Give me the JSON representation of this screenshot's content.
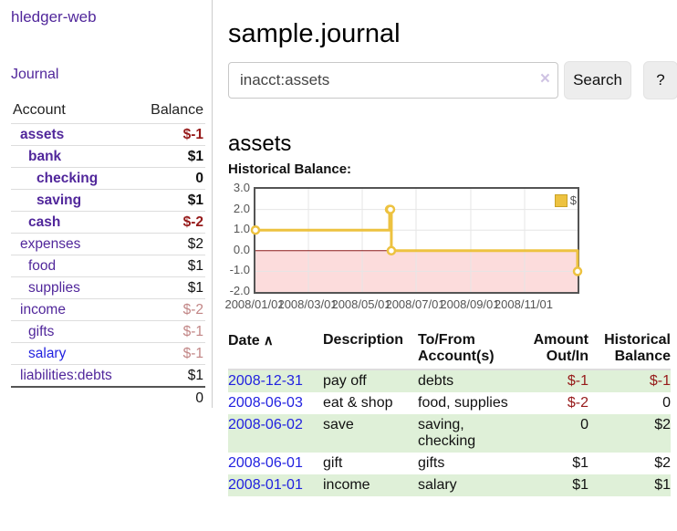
{
  "app": {
    "title": "hledger-web"
  },
  "sidebar": {
    "nav_journal": "Journal",
    "accounts_table": {
      "headers": {
        "account": "Account",
        "balance": "Balance"
      },
      "rows": [
        {
          "name": "assets",
          "balance": "$-1",
          "level": 1,
          "bold": true,
          "balance_class": "neg"
        },
        {
          "name": "bank",
          "balance": "$1",
          "level": 2,
          "bold": true,
          "balance_class": ""
        },
        {
          "name": "checking",
          "balance": "0",
          "level": 3,
          "bold": true,
          "balance_class": ""
        },
        {
          "name": "saving",
          "balance": "$1",
          "level": 3,
          "bold": true,
          "balance_class": ""
        },
        {
          "name": "cash",
          "balance": "$-2",
          "level": 2,
          "bold": true,
          "balance_class": "neg"
        },
        {
          "name": "expenses",
          "balance": "$2",
          "level": 1,
          "bold": false,
          "balance_class": ""
        },
        {
          "name": "food",
          "balance": "$1",
          "level": 2,
          "bold": false,
          "balance_class": ""
        },
        {
          "name": "supplies",
          "balance": "$1",
          "level": 2,
          "bold": false,
          "balance_class": ""
        },
        {
          "name": "income",
          "balance": "$-2",
          "level": 1,
          "bold": false,
          "balance_class": "neg-light"
        },
        {
          "name": "gifts",
          "balance": "$-1",
          "level": 2,
          "bold": false,
          "balance_class": "neg-light"
        },
        {
          "name": "salary",
          "balance": "$-1",
          "level": 2,
          "bold": false,
          "balance_class": "neg-light",
          "link_color": "blue"
        },
        {
          "name": "liabilities:debts",
          "balance": "$1",
          "level": 1,
          "bold": false,
          "balance_class": ""
        }
      ],
      "total": "0"
    }
  },
  "main": {
    "title": "sample.journal",
    "search": {
      "value": "inacct:assets",
      "clear_icon": "×",
      "button_label": "Search",
      "help_label": "?"
    },
    "account_heading": "assets",
    "chart_heading": "Historical Balance:",
    "register_table": {
      "headers": {
        "date": "Date",
        "sort_icon": "∧",
        "description": "Description",
        "tofrom": "To/From Account(s)",
        "amount": "Amount Out/In",
        "balance": "Historical Balance"
      },
      "rows": [
        {
          "date": "2008-12-31",
          "description": "pay off",
          "tofrom": "debts",
          "amount": "$-1",
          "amount_neg": true,
          "balance": "$-1",
          "balance_neg": true,
          "shade": true
        },
        {
          "date": "2008-06-03",
          "description": "eat & shop",
          "tofrom": "food, supplies",
          "amount": "$-2",
          "amount_neg": true,
          "balance": "0",
          "balance_neg": false,
          "shade": false
        },
        {
          "date": "2008-06-02",
          "description": "save",
          "tofrom": "saving, checking",
          "amount": "0",
          "amount_neg": false,
          "balance": "$2",
          "balance_neg": false,
          "shade": true
        },
        {
          "date": "2008-06-01",
          "description": "gift",
          "tofrom": "gifts",
          "amount": "$1",
          "amount_neg": false,
          "balance": "$2",
          "balance_neg": false,
          "shade": false
        },
        {
          "date": "2008-01-01",
          "description": "income",
          "tofrom": "salary",
          "amount": "$1",
          "amount_neg": false,
          "balance": "$1",
          "balance_neg": false,
          "shade": true
        }
      ]
    }
  },
  "chart_data": {
    "type": "line",
    "step": true,
    "title": "Historical Balance",
    "series": [
      {
        "name": "$",
        "points": [
          [
            "2008-01-01",
            1
          ],
          [
            "2008-06-01",
            2
          ],
          [
            "2008-06-02",
            2
          ],
          [
            "2008-06-03",
            0
          ],
          [
            "2008-12-31",
            -1
          ]
        ]
      }
    ],
    "x_domain": [
      "2008-01-01",
      "2008-12-31"
    ],
    "ylim": [
      -2,
      3
    ],
    "yticks": [
      "3.0",
      "2.0",
      "1.0",
      "0.0",
      "-1.0",
      "-2.0"
    ],
    "ytick_values": [
      3,
      2,
      1,
      0,
      -1,
      -2
    ],
    "xticks": [
      "2008/01/01",
      "2008/03/01",
      "2008/05/01",
      "2008/07/01",
      "2008/09/01",
      "2008/11/01"
    ],
    "grid": true,
    "legend": {
      "label": "$",
      "position": "top-right"
    },
    "negative_region_shaded": true,
    "colors": {
      "line": "#edc240",
      "marker_fill": "#ffffff",
      "negative_fill": "#fcdcdc",
      "zero_line": "#8b1a1a",
      "grid": "#e6e6e6",
      "border": "#545454",
      "tick_text": "#545454"
    }
  }
}
